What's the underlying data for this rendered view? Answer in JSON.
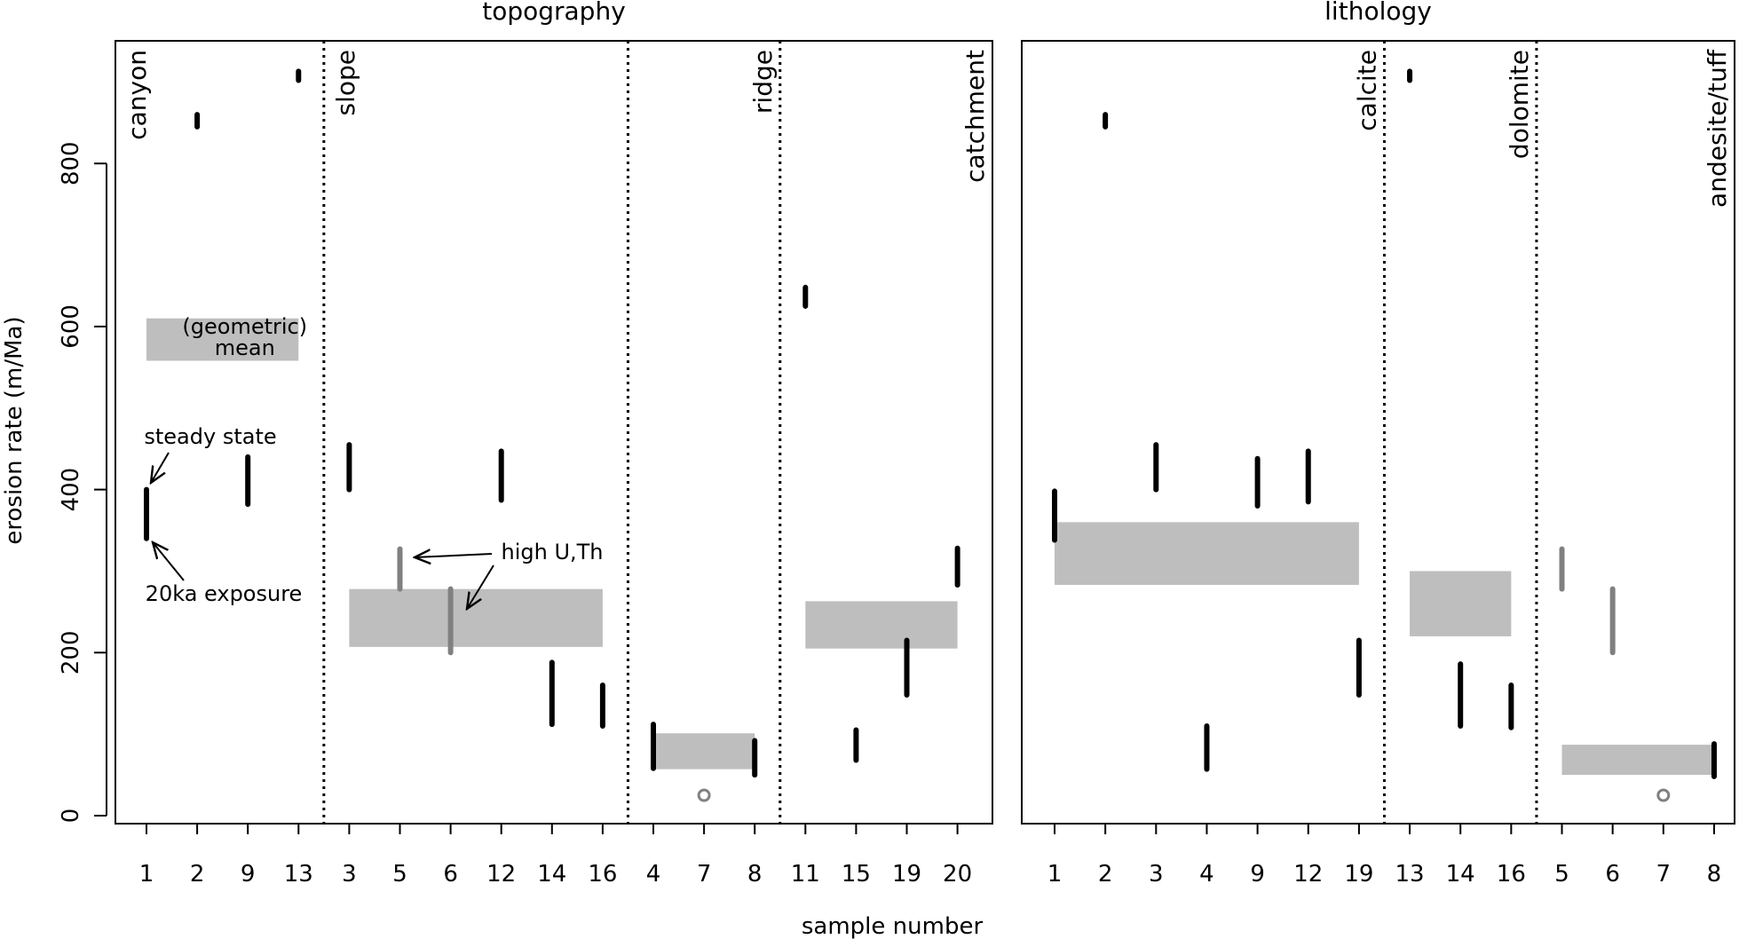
{
  "chart_data": [
    {
      "type": "interval",
      "title": "topography",
      "ylabel": "erosion rate (m/Ma)",
      "ylim": [
        0,
        950
      ],
      "yticks": [
        0,
        200,
        400,
        600,
        800
      ],
      "categories": [
        "1",
        "2",
        "9",
        "13",
        "3",
        "5",
        "6",
        "12",
        "14",
        "16",
        "4",
        "7",
        "8",
        "11",
        "15",
        "19",
        "20"
      ],
      "groups": [
        {
          "label": "canyon",
          "from": 0,
          "to": 3,
          "mean": [
            558,
            610
          ]
        },
        {
          "label": "slope",
          "from": 4,
          "to": 9,
          "mean": [
            207,
            278
          ]
        },
        {
          "label": "ridge",
          "from": 10,
          "to": 12,
          "mean": [
            57,
            101
          ]
        },
        {
          "label": "catchment",
          "from": 13,
          "to": 16,
          "mean": [
            205,
            263
          ]
        }
      ],
      "intervals": [
        {
          "sample": "1",
          "lo": 340,
          "hi": 400,
          "style": "black"
        },
        {
          "sample": "2",
          "lo": 845,
          "hi": 860,
          "style": "black"
        },
        {
          "sample": "9",
          "lo": 382,
          "hi": 440,
          "style": "black"
        },
        {
          "sample": "13",
          "lo": 902,
          "hi": 913,
          "style": "black"
        },
        {
          "sample": "3",
          "lo": 400,
          "hi": 455,
          "style": "black"
        },
        {
          "sample": "5",
          "lo": 278,
          "hi": 327,
          "style": "gray"
        },
        {
          "sample": "6",
          "lo": 200,
          "hi": 278,
          "style": "gray"
        },
        {
          "sample": "12",
          "lo": 387,
          "hi": 447,
          "style": "black"
        },
        {
          "sample": "14",
          "lo": 112,
          "hi": 188,
          "style": "black"
        },
        {
          "sample": "16",
          "lo": 110,
          "hi": 160,
          "style": "black"
        },
        {
          "sample": "4",
          "lo": 58,
          "hi": 112,
          "style": "black"
        },
        {
          "sample": "7",
          "value": 25,
          "style": "open-circle"
        },
        {
          "sample": "8",
          "lo": 50,
          "hi": 92,
          "style": "black"
        },
        {
          "sample": "11",
          "lo": 625,
          "hi": 648,
          "style": "black"
        },
        {
          "sample": "15",
          "lo": 68,
          "hi": 105,
          "style": "black"
        },
        {
          "sample": "19",
          "lo": 148,
          "hi": 215,
          "style": "black"
        },
        {
          "sample": "20",
          "lo": 283,
          "hi": 328,
          "style": "black"
        }
      ],
      "annotations": {
        "mean_label_1": "(geometric)",
        "mean_label_2": "mean",
        "steady_state": "steady state",
        "exposure": "20ka exposure",
        "high_uth": "high U,Th"
      }
    },
    {
      "type": "interval",
      "title": "lithology",
      "ylim": [
        0,
        950
      ],
      "categories": [
        "1",
        "2",
        "3",
        "4",
        "9",
        "12",
        "19",
        "13",
        "14",
        "16",
        "5",
        "6",
        "7",
        "8"
      ],
      "groups": [
        {
          "label": "calcite",
          "from": 0,
          "to": 6,
          "mean": [
            283,
            360
          ]
        },
        {
          "label": "dolomite",
          "from": 7,
          "to": 9,
          "mean": [
            220,
            300
          ]
        },
        {
          "label": "andesite/tuff",
          "from": 10,
          "to": 13,
          "mean": [
            50,
            87
          ]
        }
      ],
      "intervals": [
        {
          "sample": "1",
          "lo": 338,
          "hi": 398,
          "style": "black"
        },
        {
          "sample": "2",
          "lo": 845,
          "hi": 860,
          "style": "black"
        },
        {
          "sample": "3",
          "lo": 400,
          "hi": 455,
          "style": "black"
        },
        {
          "sample": "4",
          "lo": 57,
          "hi": 110,
          "style": "black"
        },
        {
          "sample": "9",
          "lo": 380,
          "hi": 438,
          "style": "black"
        },
        {
          "sample": "12",
          "lo": 385,
          "hi": 447,
          "style": "black"
        },
        {
          "sample": "19",
          "lo": 148,
          "hi": 215,
          "style": "black"
        },
        {
          "sample": "13",
          "lo": 902,
          "hi": 913,
          "style": "black"
        },
        {
          "sample": "14",
          "lo": 110,
          "hi": 186,
          "style": "black"
        },
        {
          "sample": "16",
          "lo": 108,
          "hi": 160,
          "style": "black"
        },
        {
          "sample": "5",
          "lo": 278,
          "hi": 327,
          "style": "gray"
        },
        {
          "sample": "6",
          "lo": 200,
          "hi": 278,
          "style": "gray"
        },
        {
          "sample": "7",
          "value": 25,
          "style": "open-circle"
        },
        {
          "sample": "8",
          "lo": 48,
          "hi": 88,
          "style": "black"
        }
      ]
    }
  ],
  "xlabel": "sample number",
  "colors": {
    "interval": "#000000",
    "highUTh": "#808080",
    "mean_box": "#bebebe",
    "outlier": "#808080"
  }
}
